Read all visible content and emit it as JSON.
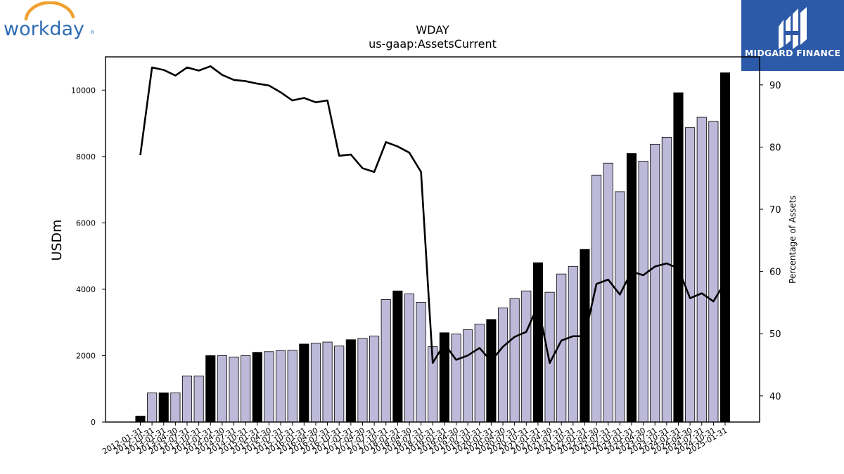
{
  "header": {
    "logo_left_text": "workday",
    "logo_right_text": "MIDGARD FINANCE"
  },
  "colors": {
    "bar_normal": "#bdb9d9",
    "bar_highlight": "#000000",
    "line": "#000000",
    "logo_left_text": "#2e6db4",
    "logo_left_arc": "#f0a030",
    "logo_right_bg": "#2d5aa8"
  },
  "chart_data": {
    "type": "bar",
    "title": "WDAY",
    "subtitle": "us-gaap:AssetsCurrent",
    "ylabel": "USDm",
    "y2label": "Percentage of Assets",
    "ylim": [
      0,
      11000
    ],
    "y2lim": [
      35.8,
      94.5
    ],
    "yticks": [
      0,
      2000,
      4000,
      6000,
      8000,
      10000
    ],
    "y2ticks": [
      40,
      50,
      60,
      70,
      80,
      90
    ],
    "categories": [
      "2012-01-31",
      "2012-10-31",
      "2013-01-31",
      "2013-04-30",
      "2013-07-31",
      "2013-10-31",
      "2014-01-31",
      "2014-04-30",
      "2014-07-31",
      "2014-10-31",
      "2015-01-31",
      "2015-04-30",
      "2015-07-31",
      "2015-10-31",
      "2016-01-31",
      "2016-04-30",
      "2016-07-31",
      "2016-10-31",
      "2017-01-31",
      "2017-04-30",
      "2017-07-31",
      "2017-10-31",
      "2018-01-31",
      "2018-04-30",
      "2018-07-31",
      "2018-10-31",
      "2019-01-31",
      "2019-04-30",
      "2019-07-31",
      "2019-10-31",
      "2020-01-31",
      "2020-04-30",
      "2020-07-31",
      "2020-10-31",
      "2021-01-31",
      "2021-04-30",
      "2021-07-31",
      "2021-10-31",
      "2022-01-31",
      "2022-04-30",
      "2022-07-31",
      "2022-10-31",
      "2023-01-31",
      "2023-04-30",
      "2023-07-31",
      "2023-10-31",
      "2024-01-31",
      "2024-04-30",
      "2024-07-31",
      "2024-10-31",
      "2025-01-31"
    ],
    "series": [
      {
        "kind": "bar",
        "values": [
          180,
          880,
          880,
          880,
          1390,
          1390,
          2000,
          2000,
          1960,
          2000,
          2100,
          2120,
          2150,
          2160,
          2350,
          2370,
          2410,
          2290,
          2480,
          2520,
          2590,
          3690,
          3950,
          3860,
          3610,
          2270,
          2690,
          2650,
          2780,
          2950,
          3090,
          3440,
          3720,
          3950,
          4800,
          3910,
          4460,
          4690,
          5200,
          7440,
          7800,
          6940,
          8090,
          7860,
          8370,
          8580,
          9920,
          8870,
          9180,
          9060,
          10520
        ]
      },
      {
        "kind": "line",
        "axis": "right",
        "values": [
          78.7,
          92.8,
          92.4,
          91.5,
          92.8,
          92.3,
          93.0,
          91.6,
          90.8,
          90.6,
          90.2,
          89.9,
          88.8,
          87.5,
          87.9,
          87.2,
          87.5,
          78.6,
          78.8,
          76.6,
          76.0,
          80.8,
          80.1,
          79.1,
          76.0,
          45.3,
          48.4,
          45.8,
          46.5,
          47.7,
          45.6,
          47.9,
          49.5,
          50.3,
          54.6,
          45.3,
          48.9,
          49.6,
          49.6,
          58.0,
          58.7,
          56.3,
          60.0,
          59.4,
          60.8,
          61.3,
          60.5,
          55.7,
          56.5,
          55.2,
          58.3
        ]
      }
    ],
    "highlight_categories": [
      "2012-01-31",
      "2013-01-31",
      "2014-01-31",
      "2015-01-31",
      "2016-01-31",
      "2017-01-31",
      "2018-01-31",
      "2019-01-31",
      "2020-01-31",
      "2021-01-31",
      "2022-01-31",
      "2023-01-31",
      "2024-01-31",
      "2025-01-31"
    ],
    "grid": false,
    "legend": "none"
  }
}
